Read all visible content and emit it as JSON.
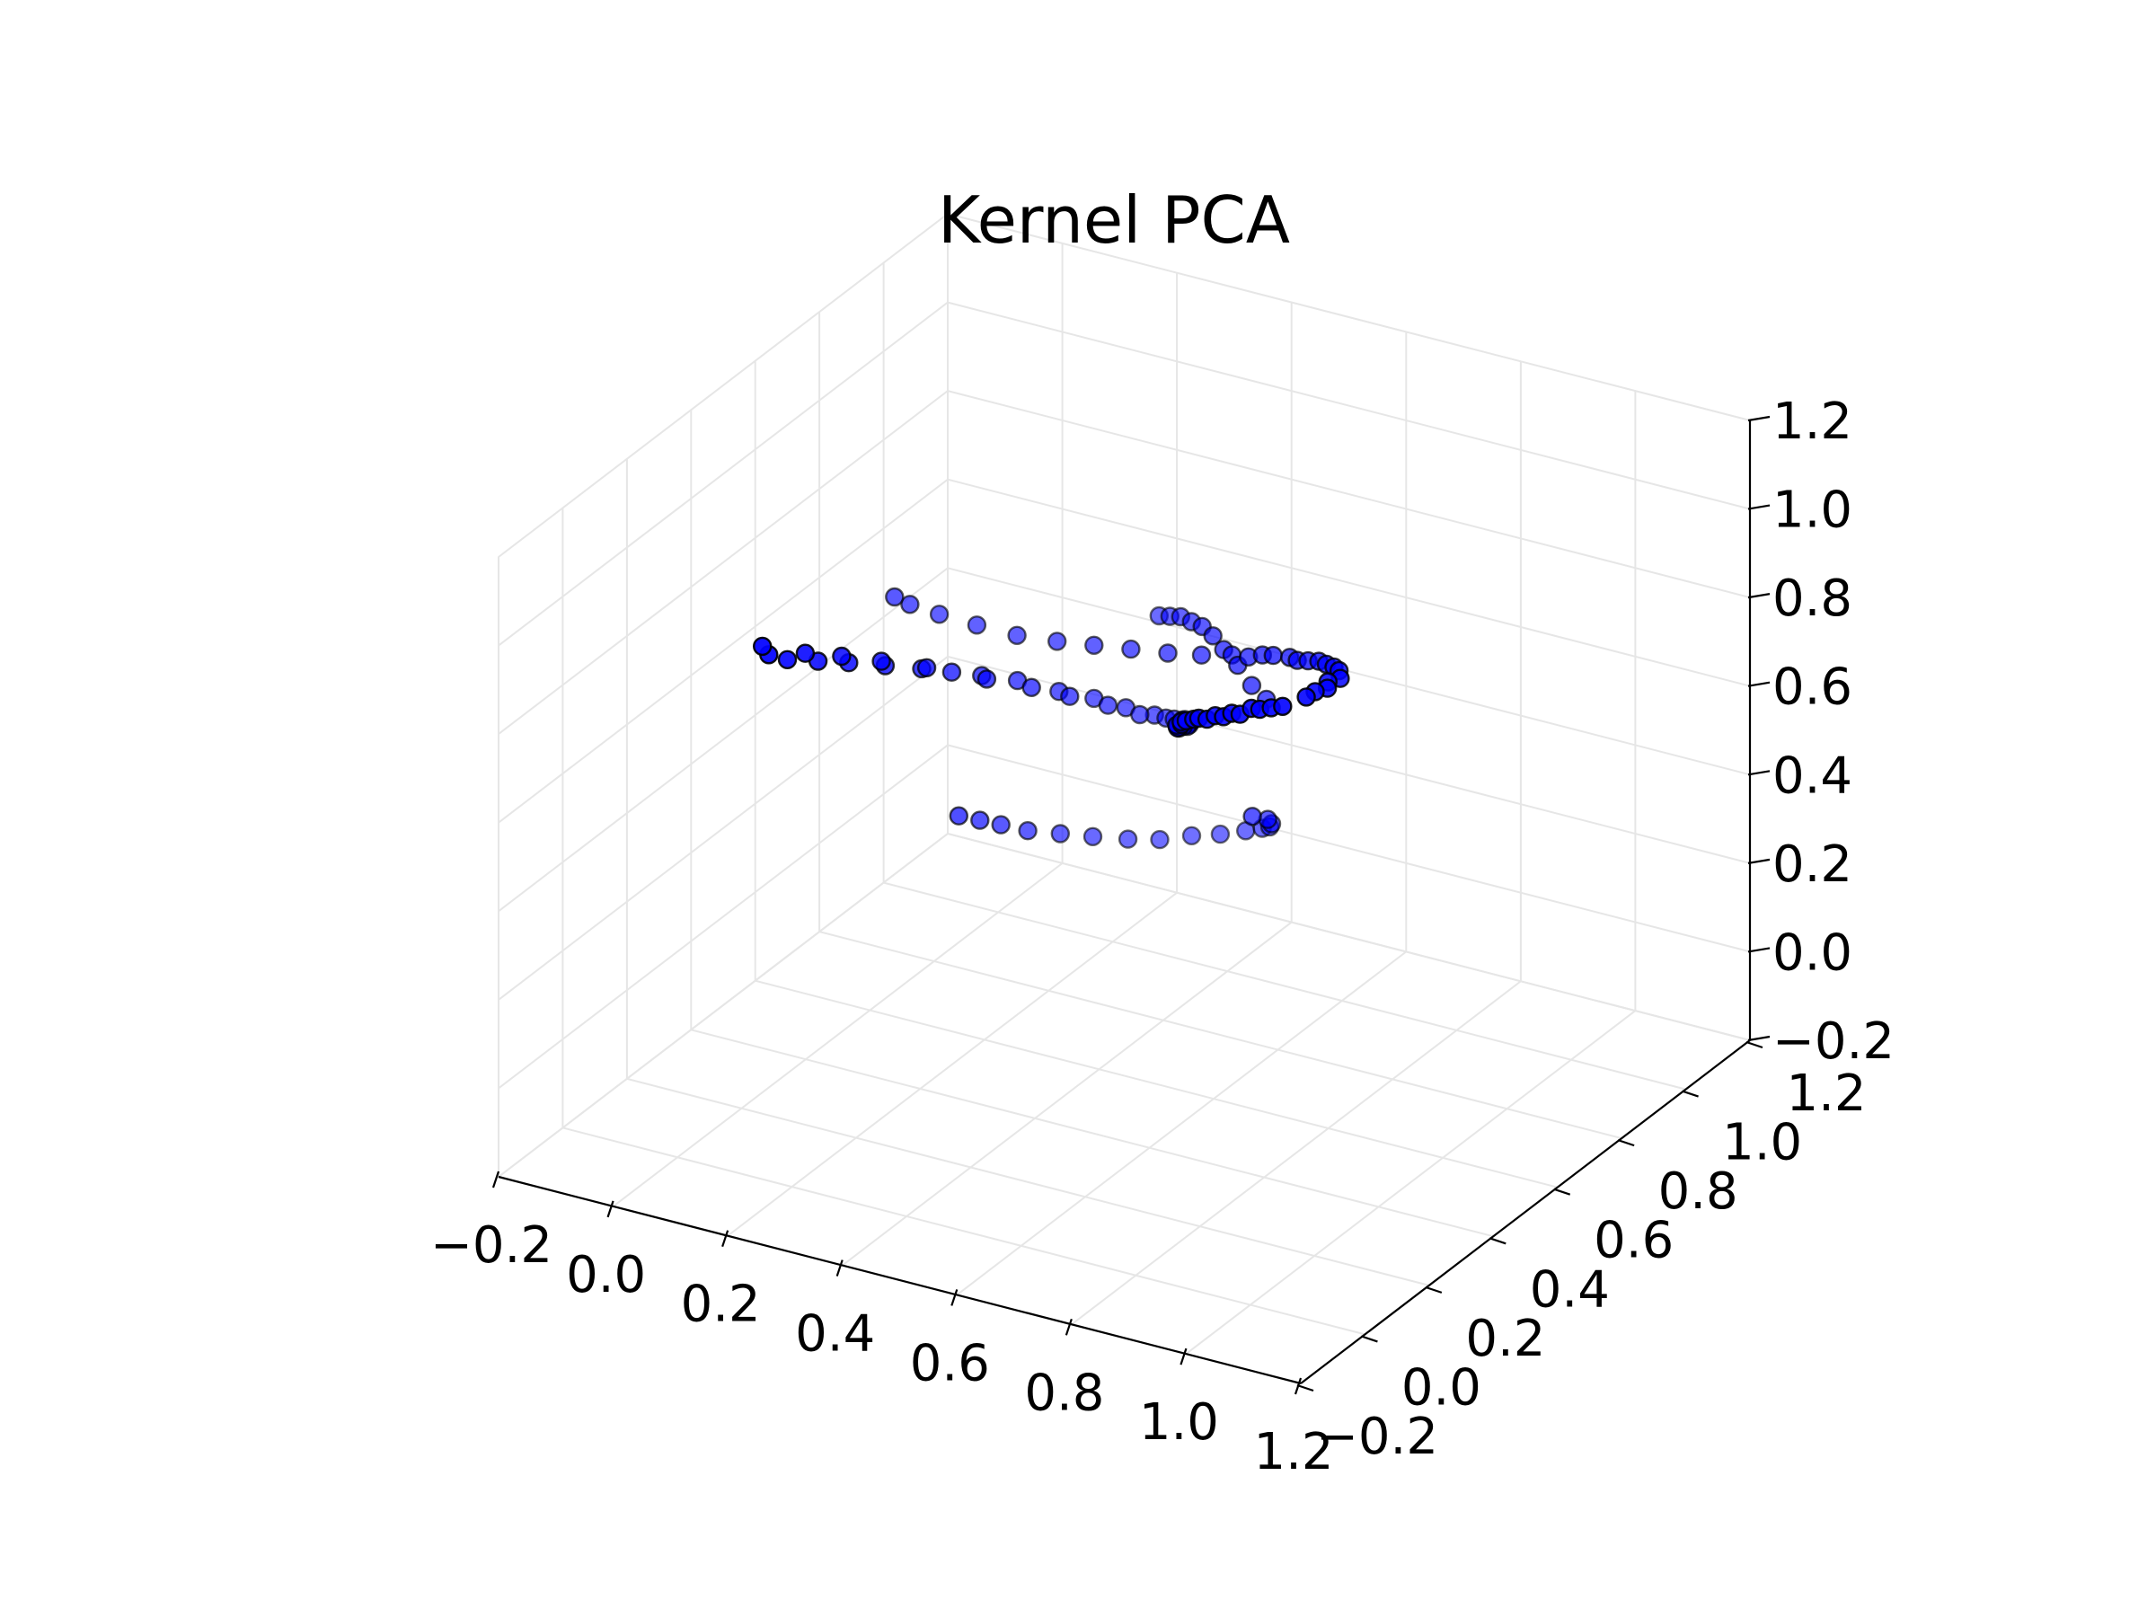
{
  "chart_data": {
    "type": "scatter",
    "projection": "3d",
    "title": "Kernel PCA",
    "xlabel": "",
    "ylabel": "",
    "zlabel": "",
    "xlim": [
      -0.2,
      1.2
    ],
    "ylim": [
      -0.2,
      1.2
    ],
    "zlim": [
      -0.2,
      1.2
    ],
    "xticks": [
      "−0.2",
      "0.0",
      "0.2",
      "0.4",
      "0.6",
      "0.8",
      "1.0",
      "1.2"
    ],
    "yticks": [
      "−0.2",
      "0.0",
      "0.2",
      "0.4",
      "0.6",
      "0.8",
      "1.0",
      "1.2"
    ],
    "zticks": [
      "−0.2",
      "0.0",
      "0.2",
      "0.4",
      "0.6",
      "0.8",
      "1.0",
      "1.2"
    ],
    "grid": true,
    "marker_color": "#0000ff",
    "marker_edge_color": "#000000",
    "points": [
      [
        0.07,
        0.14,
        0.9
      ],
      [
        0.07,
        0.16,
        0.87
      ],
      [
        0.08,
        0.2,
        0.84
      ],
      [
        0.1,
        0.26,
        0.81
      ],
      [
        0.12,
        0.32,
        0.78
      ],
      [
        0.15,
        0.38,
        0.75
      ],
      [
        0.18,
        0.44,
        0.72
      ],
      [
        0.21,
        0.48,
        0.7
      ],
      [
        0.24,
        0.52,
        0.68
      ],
      [
        0.28,
        0.56,
        0.66
      ],
      [
        0.33,
        0.6,
        0.63
      ],
      [
        0.38,
        0.62,
        0.62
      ],
      [
        0.43,
        0.63,
        0.61
      ],
      [
        0.48,
        0.63,
        0.61
      ],
      [
        0.52,
        0.62,
        0.62
      ],
      [
        0.55,
        0.6,
        0.64
      ],
      [
        0.58,
        0.56,
        0.66
      ],
      [
        0.6,
        0.52,
        0.69
      ],
      [
        0.62,
        0.47,
        0.72
      ],
      [
        0.64,
        0.42,
        0.75
      ],
      [
        0.66,
        0.38,
        0.78
      ],
      [
        0.69,
        0.34,
        0.82
      ],
      [
        0.72,
        0.3,
        0.86
      ],
      [
        0.75,
        0.27,
        0.89
      ],
      [
        0.79,
        0.24,
        0.92
      ],
      [
        0.83,
        0.22,
        0.95
      ],
      [
        0.87,
        0.2,
        0.98
      ],
      [
        0.91,
        0.19,
        1.01
      ],
      [
        0.95,
        0.19,
        1.03
      ],
      [
        0.98,
        0.21,
        1.05
      ],
      [
        1.0,
        0.24,
        1.06
      ],
      [
        1.0,
        0.28,
        1.06
      ],
      [
        0.97,
        0.33,
        1.04
      ],
      [
        0.92,
        0.38,
        1.01
      ],
      [
        0.86,
        0.43,
        0.97
      ],
      [
        0.8,
        0.48,
        0.93
      ],
      [
        0.73,
        0.52,
        0.89
      ],
      [
        0.66,
        0.55,
        0.85
      ],
      [
        0.59,
        0.58,
        0.81
      ],
      [
        0.52,
        0.6,
        0.78
      ],
      [
        0.45,
        0.61,
        0.76
      ],
      [
        0.38,
        0.62,
        0.74
      ],
      [
        0.31,
        0.63,
        0.72
      ],
      [
        0.24,
        0.63,
        0.71
      ],
      [
        0.17,
        0.63,
        0.71
      ],
      [
        0.11,
        0.62,
        0.72
      ],
      [
        0.07,
        0.6,
        0.74
      ],
      [
        0.06,
        0.57,
        0.77
      ],
      [
        0.1,
        0.22,
        0.85
      ],
      [
        0.13,
        0.28,
        0.82
      ],
      [
        0.16,
        0.35,
        0.78
      ],
      [
        0.2,
        0.42,
        0.74
      ],
      [
        0.26,
        0.5,
        0.69
      ],
      [
        0.31,
        0.55,
        0.66
      ],
      [
        0.36,
        0.58,
        0.64
      ],
      [
        0.41,
        0.61,
        0.62
      ],
      [
        0.46,
        0.62,
        0.61
      ],
      [
        0.5,
        0.63,
        0.61
      ],
      [
        0.54,
        0.61,
        0.63
      ],
      [
        0.57,
        0.58,
        0.65
      ],
      [
        0.61,
        0.5,
        0.7
      ],
      [
        0.63,
        0.44,
        0.74
      ],
      [
        0.67,
        0.36,
        0.8
      ],
      [
        0.7,
        0.32,
        0.84
      ],
      [
        0.77,
        0.25,
        0.91
      ],
      [
        0.81,
        0.23,
        0.94
      ],
      [
        0.85,
        0.21,
        0.97
      ],
      [
        0.89,
        0.2,
        1.0
      ],
      [
        0.93,
        0.19,
        1.02
      ],
      [
        0.99,
        0.22,
        1.06
      ],
      [
        0.99,
        0.26,
        1.06
      ],
      [
        0.95,
        0.35,
        1.03
      ],
      [
        0.89,
        0.41,
        0.99
      ],
      [
        0.83,
        0.45,
        0.95
      ],
      [
        0.76,
        0.5,
        0.91
      ],
      [
        0.7,
        0.53,
        0.87
      ],
      [
        0.2,
        0.52,
        0.35
      ],
      [
        0.22,
        0.55,
        0.33
      ],
      [
        0.24,
        0.58,
        0.31
      ],
      [
        0.27,
        0.61,
        0.29
      ],
      [
        0.31,
        0.64,
        0.28
      ],
      [
        0.35,
        0.67,
        0.27
      ],
      [
        0.4,
        0.69,
        0.27
      ],
      [
        0.45,
        0.7,
        0.28
      ],
      [
        0.5,
        0.71,
        0.3
      ],
      [
        0.55,
        0.71,
        0.32
      ],
      [
        0.6,
        0.7,
        0.35
      ],
      [
        0.64,
        0.68,
        0.38
      ],
      [
        0.67,
        0.65,
        0.41
      ],
      [
        0.69,
        0.62,
        0.44
      ],
      [
        0.7,
        0.59,
        0.47
      ],
      [
        0.69,
        0.56,
        0.49
      ],
      [
        0.46,
        0.68,
        0.8
      ],
      [
        0.49,
        0.66,
        0.82
      ],
      [
        0.52,
        0.64,
        0.84
      ],
      [
        0.55,
        0.62,
        0.85
      ],
      [
        0.58,
        0.6,
        0.86
      ],
      [
        0.61,
        0.58,
        0.86
      ],
      [
        0.64,
        0.56,
        0.85
      ],
      [
        0.67,
        0.55,
        0.83
      ],
      [
        0.7,
        0.54,
        0.8
      ],
      [
        0.72,
        0.55,
        0.77
      ]
    ]
  }
}
